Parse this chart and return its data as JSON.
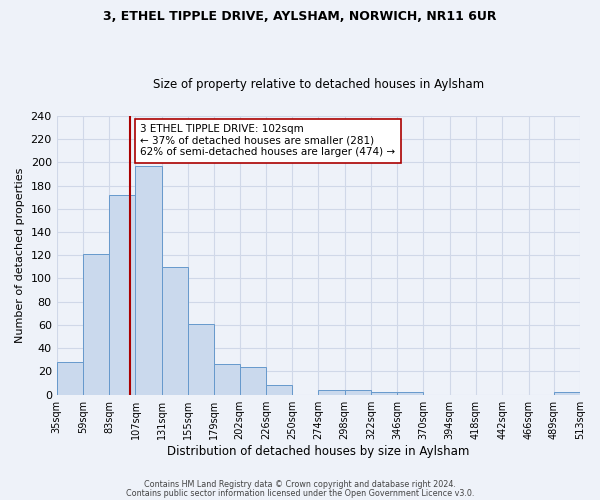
{
  "title1": "3, ETHEL TIPPLE DRIVE, AYLSHAM, NORWICH, NR11 6UR",
  "title2": "Size of property relative to detached houses in Aylsham",
  "xlabel": "Distribution of detached houses by size in Aylsham",
  "ylabel": "Number of detached properties",
  "bin_edges": [
    35,
    59,
    83,
    107,
    131,
    155,
    179,
    202,
    226,
    250,
    274,
    298,
    322,
    346,
    370,
    394,
    418,
    442,
    466,
    489,
    513
  ],
  "bar_heights": [
    28,
    121,
    172,
    197,
    110,
    61,
    26,
    24,
    8,
    0,
    4,
    4,
    2,
    2,
    0,
    0,
    0,
    0,
    0,
    2
  ],
  "bar_color": "#cad9ed",
  "bar_edge_color": "#6699cc",
  "property_value": 102,
  "vline_color": "#aa0000",
  "annotation_title": "3 ETHEL TIPPLE DRIVE: 102sqm",
  "annotation_line1": "← 37% of detached houses are smaller (281)",
  "annotation_line2": "62% of semi-detached houses are larger (474) →",
  "annotation_box_facecolor": "#ffffff",
  "annotation_box_edgecolor": "#aa0000",
  "ylim": [
    0,
    240
  ],
  "yticks": [
    0,
    20,
    40,
    60,
    80,
    100,
    120,
    140,
    160,
    180,
    200,
    220,
    240
  ],
  "xtick_labels": [
    "35sqm",
    "59sqm",
    "83sqm",
    "107sqm",
    "131sqm",
    "155sqm",
    "179sqm",
    "202sqm",
    "226sqm",
    "250sqm",
    "274sqm",
    "298sqm",
    "322sqm",
    "346sqm",
    "370sqm",
    "394sqm",
    "418sqm",
    "442sqm",
    "466sqm",
    "489sqm",
    "513sqm"
  ],
  "grid_color": "#d0d8e8",
  "bg_color": "#eef2f9",
  "footer1": "Contains HM Land Registry data © Crown copyright and database right 2024.",
  "footer2": "Contains public sector information licensed under the Open Government Licence v3.0."
}
